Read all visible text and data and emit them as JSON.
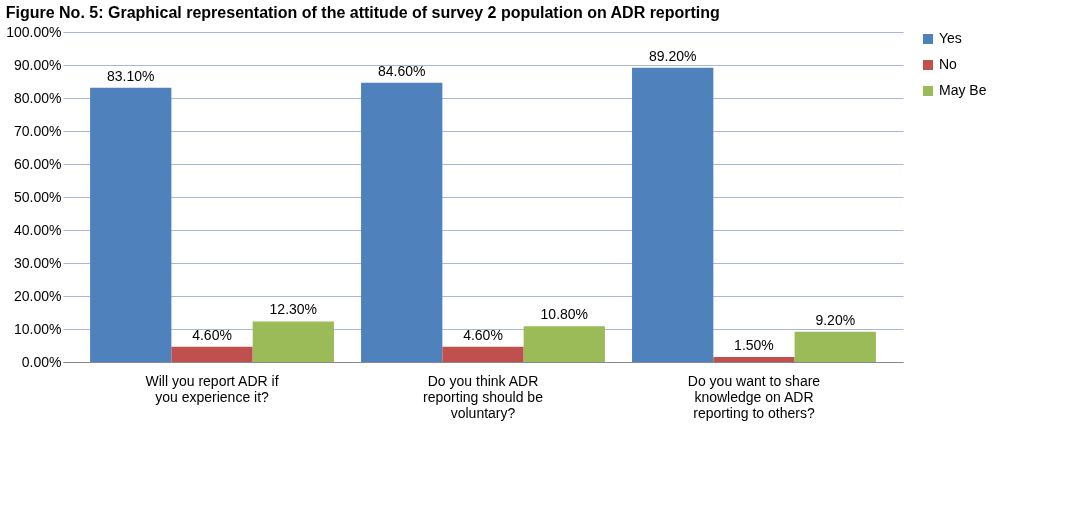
{
  "chart_data": {
    "type": "bar",
    "title": "Figure No. 5: Graphical representation of the attitude of survey 2 population on ADR reporting",
    "categories": [
      "Will you report ADR if you experience it?",
      "Do you think ADR reporting should be voluntary?",
      "Do you want to share knowledge on ADR reporting to others?"
    ],
    "series": [
      {
        "name": "Yes",
        "color": "#4f81bd",
        "values": [
          83.1,
          84.6,
          89.2
        ],
        "value_labels": [
          "83.10%",
          "84.60%",
          "89.20%"
        ]
      },
      {
        "name": "No",
        "color": "#c0504d",
        "values": [
          4.6,
          4.6,
          1.5
        ],
        "value_labels": [
          "4.60%",
          "4.60%",
          "1.50%"
        ]
      },
      {
        "name": "May Be",
        "color": "#9bbb59",
        "values": [
          12.3,
          10.8,
          9.2
        ],
        "value_labels": [
          "12.30%",
          "10.80%",
          "9.20%"
        ]
      }
    ],
    "ylim": [
      0,
      100
    ],
    "yticks": [
      {
        "value": 0,
        "label": "0.00%"
      },
      {
        "value": 10,
        "label": "10.00%"
      },
      {
        "value": 20,
        "label": "20.00%"
      },
      {
        "value": 30,
        "label": "30.00%"
      },
      {
        "value": 40,
        "label": "40.00%"
      },
      {
        "value": 50,
        "label": "50.00%"
      },
      {
        "value": 60,
        "label": "60.00%"
      },
      {
        "value": 70,
        "label": "70.00%"
      },
      {
        "value": 80,
        "label": "80.00%"
      },
      {
        "value": 90,
        "label": "90.00%"
      },
      {
        "value": 100,
        "label": "100.00%"
      }
    ],
    "grid": "y",
    "legend": "right"
  }
}
